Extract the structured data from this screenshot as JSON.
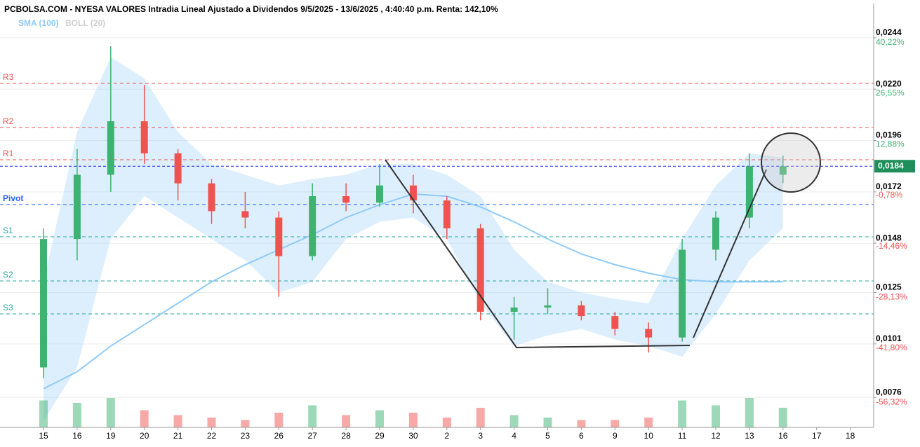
{
  "chart_data": {
    "type": "candlestick",
    "title": "PCBOLSA.COM - NYESA VALORES Intradia Lineal Ajustado a Dividendos 9/5/2025 - 13/6/2025 , 4:40:40 p.m. Renta: 142,10%",
    "indicators": [
      {
        "name": "SMA (100)",
        "color": "#90caf9"
      },
      {
        "name": "BOLL (20)",
        "color": "#d6d6d6"
      }
    ],
    "categories": [
      "15",
      "16",
      "19",
      "20",
      "21",
      "22",
      "23",
      "26",
      "27",
      "28",
      "29",
      "30",
      "2",
      "3",
      "4",
      "5",
      "6",
      "9",
      "10",
      "11",
      "12",
      "13",
      "16",
      "17",
      "18"
    ],
    "open": [
      0.009,
      0.015,
      0.018,
      0.0205,
      0.019,
      0.0176,
      0.0163,
      0.016,
      0.0142,
      0.017,
      0.0167,
      0.0175,
      0.0168,
      0.0155,
      0.0116,
      0.0118,
      0.0119,
      0.0114,
      0.0108,
      0.0104,
      0.0145,
      0.016,
      0.018,
      null,
      null
    ],
    "high": [
      0.0155,
      0.0192,
      0.024,
      0.0222,
      0.0192,
      0.0178,
      0.0172,
      0.0163,
      0.0176,
      0.0176,
      0.0185,
      0.018,
      0.017,
      0.0157,
      0.0123,
      0.0127,
      0.0121,
      0.0116,
      0.0111,
      0.015,
      0.0163,
      0.019,
      0.0189,
      null,
      null
    ],
    "low": [
      0.0085,
      0.014,
      0.0172,
      0.0185,
      0.0168,
      0.0157,
      0.0155,
      0.0123,
      0.014,
      0.0163,
      0.0165,
      0.0162,
      0.015,
      0.0112,
      0.0103,
      0.0115,
      0.0112,
      0.0105,
      0.0097,
      0.0102,
      0.014,
      0.0155,
      0.0176,
      null,
      null
    ],
    "close": [
      0.015,
      0.018,
      0.0205,
      0.019,
      0.0176,
      0.0163,
      0.016,
      0.0142,
      0.017,
      0.0167,
      0.0175,
      0.0168,
      0.0155,
      0.0116,
      0.0118,
      0.0119,
      0.0114,
      0.0108,
      0.0104,
      0.0145,
      0.016,
      0.0184,
      0.0184,
      null,
      null
    ],
    "volume": [
      55,
      50,
      60,
      35,
      25,
      20,
      15,
      30,
      45,
      25,
      35,
      30,
      20,
      40,
      25,
      20,
      15,
      15,
      20,
      55,
      45,
      60,
      40,
      null,
      null
    ],
    "vlim": [
      0,
      100
    ],
    "sma": [
      0.008,
      0.0088,
      0.01,
      0.011,
      0.012,
      0.013,
      0.0138,
      0.0145,
      0.0152,
      0.016,
      0.0166,
      0.0171,
      0.017,
      0.0165,
      0.0158,
      0.015,
      0.0143,
      0.0138,
      0.0134,
      0.0131,
      0.013,
      0.013,
      0.013,
      null,
      null
    ],
    "boll_upper": [
      0.013,
      0.02,
      0.0235,
      0.0225,
      0.02,
      0.0185,
      0.018,
      0.0175,
      0.0178,
      0.018,
      0.0185,
      0.0185,
      0.018,
      0.017,
      0.0145,
      0.013,
      0.0125,
      0.0122,
      0.012,
      0.015,
      0.0175,
      0.019,
      0.0188,
      null,
      null
    ],
    "boll_lower": [
      0.0065,
      0.009,
      0.015,
      0.017,
      0.016,
      0.015,
      0.014,
      0.0125,
      0.013,
      0.015,
      0.0158,
      0.016,
      0.015,
      0.012,
      0.01,
      0.0105,
      0.0108,
      0.0103,
      0.01,
      0.0095,
      0.0115,
      0.014,
      0.0155,
      null,
      null
    ],
    "levels": [
      {
        "name": "R3",
        "value": 0.02227,
        "color": "#ef5350"
      },
      {
        "name": "R2",
        "value": 0.02021,
        "color": "#ef5350"
      },
      {
        "name": "R1",
        "value": 0.0187,
        "color": "#ef5350"
      },
      {
        "name": "Pivot",
        "value": 0.01661,
        "color": "#2962ff"
      },
      {
        "name": "S1",
        "value": 0.0151,
        "color": "#26a69a"
      },
      {
        "name": "S2",
        "value": 0.01304,
        "color": "#26a69a"
      },
      {
        "name": "S3",
        "value": 0.0115,
        "color": "#26a69a"
      }
    ],
    "current": {
      "value": 0.0184,
      "label": "0,0184"
    },
    "ylim": [
      0.0062,
      0.026
    ],
    "yticks": [
      {
        "value": 0.0244,
        "label": "0,0244"
      },
      {
        "value": 0.022,
        "label": "0,0220"
      },
      {
        "value": 0.0196,
        "label": "0,0196"
      },
      {
        "value": 0.0172,
        "label": "0,0172"
      },
      {
        "value": 0.0148,
        "label": "0,0148"
      },
      {
        "value": 0.0125,
        "label": "0,0125"
      },
      {
        "value": 0.0101,
        "label": "0,0101"
      },
      {
        "value": 0.0076,
        "label": "0,0076"
      }
    ],
    "y2lim": [
      -64.37,
      49.41
    ],
    "y2ticks": [
      {
        "value": 40.22,
        "label": "40,22%"
      },
      {
        "value": 26.55,
        "label": "26,55%"
      },
      {
        "value": 12.88,
        "label": "12,88%"
      },
      {
        "value": -0.78,
        "label": "-0,78%"
      },
      {
        "value": -14.46,
        "label": "-14,46%"
      },
      {
        "value": -28.13,
        "label": "-28,13%"
      },
      {
        "value": -41.8,
        "label": "-41,80%"
      },
      {
        "value": -56.32,
        "label": "-56,32%"
      }
    ],
    "colors": {
      "up": "#3cb371",
      "down": "#ef5350"
    }
  }
}
